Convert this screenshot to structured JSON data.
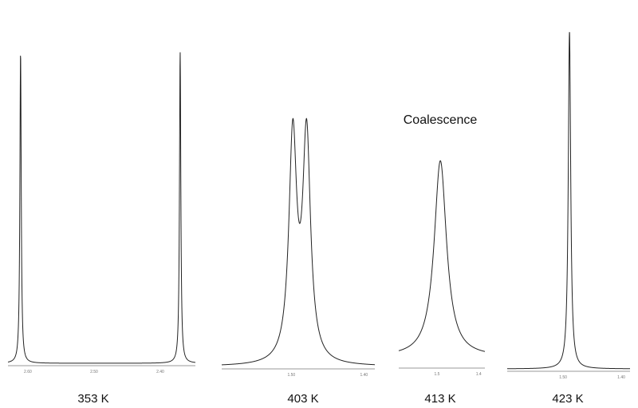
{
  "chart_data": {
    "type": "line",
    "title": "",
    "annotation": "Coalescence",
    "line_color": "#222222",
    "axis_color": "#cccccc",
    "grid": false,
    "panels": [
      {
        "label": "353 K",
        "xlim": [
          2.63,
          2.347
        ],
        "ticks": [
          {
            "v": 2.6,
            "label": "2.60"
          },
          {
            "v": 2.5,
            "label": "2.50"
          },
          {
            "v": 2.4,
            "label": "2.40"
          }
        ],
        "peaks": [
          {
            "ppm": 2.611,
            "width": 0.0012,
            "intensity": 1.0
          },
          {
            "ppm": 2.37,
            "width": 0.0012,
            "intensity": 1.0
          }
        ]
      },
      {
        "label": "403 K",
        "xlim": [
          1.596,
          1.385
        ],
        "ticks": [
          {
            "v": 1.5,
            "label": "1.50"
          },
          {
            "v": 1.4,
            "label": "1.40"
          }
        ],
        "peaks": [
          {
            "ppm": 1.498,
            "width": 0.0065,
            "intensity": 0.72
          },
          {
            "ppm": 1.479,
            "width": 0.0065,
            "intensity": 0.72
          }
        ]
      },
      {
        "label": "413 K",
        "xlim": [
          1.592,
          1.385
        ],
        "ticks": [
          {
            "v": 1.5,
            "label": "1.5"
          },
          {
            "v": 1.4,
            "label": "1.4"
          }
        ],
        "peaks": [
          {
            "ppm": 1.492,
            "width": 0.018,
            "intensity": 0.63
          }
        ]
      },
      {
        "label": "423 K",
        "xlim": [
          1.596,
          1.385
        ],
        "ticks": [
          {
            "v": 1.5,
            "label": "1.50"
          },
          {
            "v": 1.4,
            "label": "1.40"
          }
        ],
        "peaks": [
          {
            "ppm": 1.489,
            "width": 0.0025,
            "intensity": 1.03
          }
        ]
      }
    ]
  }
}
